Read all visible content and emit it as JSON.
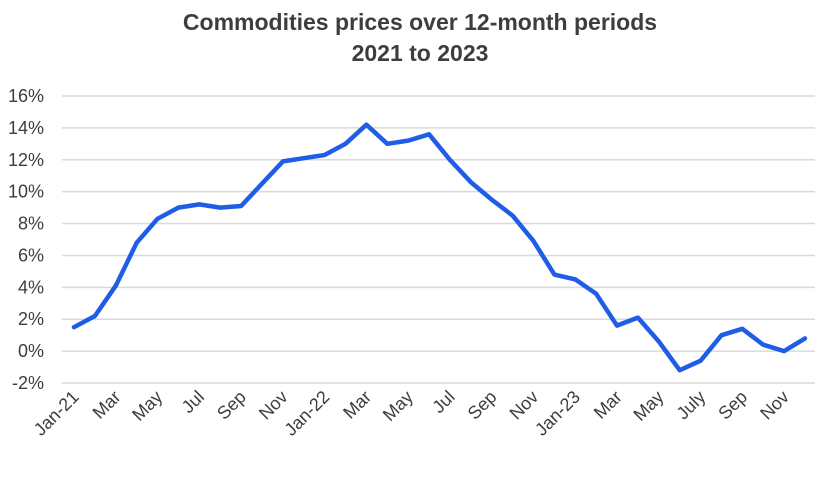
{
  "chart_data": {
    "type": "line",
    "title": "Commodities prices over 12-month periods",
    "subtitle": "2021 to 2023",
    "xlabel": "",
    "ylabel": "",
    "ylim": [
      -2,
      16
    ],
    "yticks": [
      "16%",
      "14%",
      "12%",
      "10%",
      "8%",
      "6%",
      "4%",
      "2%",
      "0%",
      "-2%"
    ],
    "ytick_values": [
      16,
      14,
      12,
      10,
      8,
      6,
      4,
      2,
      0,
      -2
    ],
    "grid": true,
    "line_color": "#1f5de6",
    "x": [
      "Jan-21",
      "Feb-21",
      "Mar-21",
      "Apr-21",
      "May-21",
      "Jun-21",
      "Jul-21",
      "Aug-21",
      "Sep-21",
      "Oct-21",
      "Nov-21",
      "Dec-21",
      "Jan-22",
      "Feb-22",
      "Mar-22",
      "Apr-22",
      "May-22",
      "Jun-22",
      "Jul-22",
      "Aug-22",
      "Sep-22",
      "Oct-22",
      "Nov-22",
      "Dec-22",
      "Jan-23",
      "Feb-23",
      "Mar-23",
      "Apr-23",
      "May-23",
      "Jun-23",
      "Jul-23",
      "Aug-23",
      "Sep-23",
      "Oct-23",
      "Nov-23",
      "Dec-23"
    ],
    "xtick_labels": [
      "Jan-21",
      "Mar",
      "May",
      "Jul",
      "Sep",
      "Nov",
      "Jan-22",
      "Mar",
      "May",
      "Jul",
      "Sep",
      "Nov",
      "Jan-23",
      "Mar",
      "May",
      "July",
      "Sep",
      "Nov"
    ],
    "series": [
      {
        "values": [
          1.5,
          2.2,
          4.1,
          6.8,
          8.3,
          9.0,
          9.2,
          9.0,
          9.1,
          10.5,
          11.9,
          12.1,
          12.3,
          13.0,
          14.2,
          13.0,
          13.2,
          13.6,
          12.0,
          10.6,
          9.5,
          8.5,
          6.9,
          4.8,
          4.5,
          3.6,
          1.6,
          2.1,
          0.6,
          -1.2,
          -0.6,
          1.0,
          1.4,
          0.4,
          0.0,
          0.8
        ]
      }
    ]
  }
}
